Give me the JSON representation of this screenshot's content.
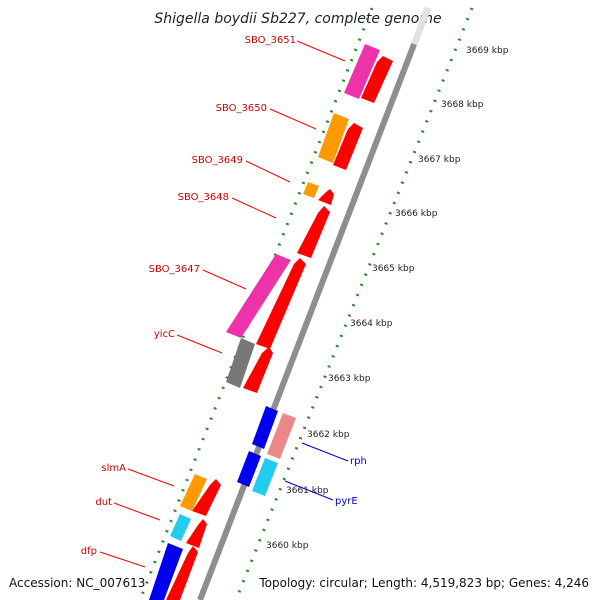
{
  "title": "Shigella boydii Sb227, complete genome",
  "footer": {
    "accession": "Accession: NC_007613",
    "topology": "Topology: circular; Length: 4,519,823 bp; Genes: 4,246"
  },
  "colors": {
    "backbone": "#9a9a9a",
    "backbone_highlight": "#d8d8d8",
    "tick_dots": "#2a8a2a",
    "label_left": "#cc0000",
    "label_right": "#0000cc",
    "leader_left": "#ff0000",
    "leader_right": "#0000cc"
  },
  "ticks": [
    {
      "label": "3669 kbp"
    },
    {
      "label": "3668 kbp"
    },
    {
      "label": "3667 kbp"
    },
    {
      "label": "3666 kbp"
    },
    {
      "label": "3665 kbp"
    },
    {
      "label": "3664 kbp"
    },
    {
      "label": "3663 kbp"
    },
    {
      "label": "3662 kbp"
    },
    {
      "label": "3661 kbp"
    },
    {
      "label": "3660 kbp"
    }
  ],
  "genes": [
    {
      "name": "SBO_3651",
      "side": "left"
    },
    {
      "name": "SBO_3650",
      "side": "left"
    },
    {
      "name": "SBO_3649",
      "side": "left"
    },
    {
      "name": "SBO_3648",
      "side": "left"
    },
    {
      "name": "SBO_3647",
      "side": "left"
    },
    {
      "name": "yicC",
      "side": "left"
    },
    {
      "name": "slmA",
      "side": "left"
    },
    {
      "name": "dut",
      "side": "left"
    },
    {
      "name": "dfp",
      "side": "left"
    },
    {
      "name": "rph",
      "side": "right"
    },
    {
      "name": "pyrE",
      "side": "right"
    }
  ]
}
